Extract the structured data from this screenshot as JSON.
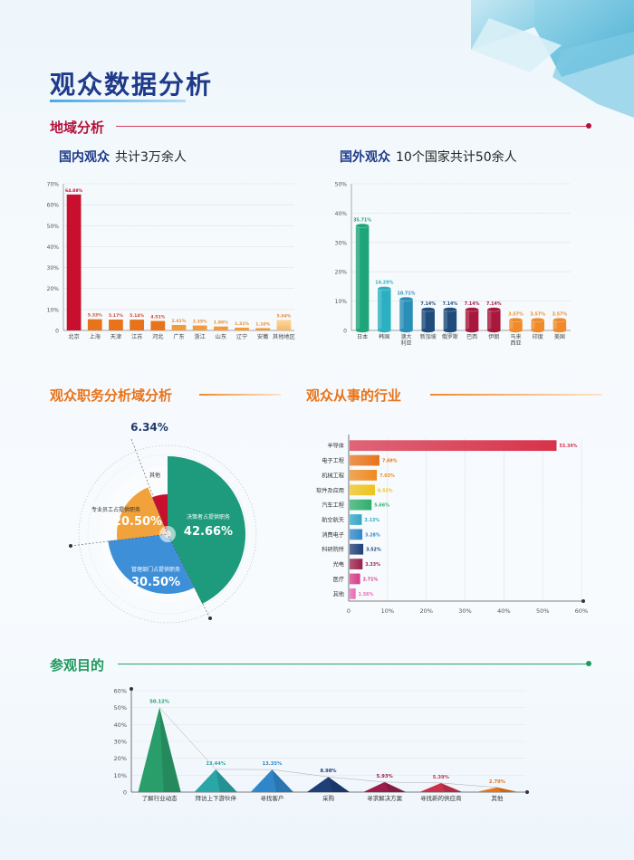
{
  "page": {
    "title": "观众数据分析"
  },
  "section_region": {
    "title": "地域分析"
  },
  "section_job": {
    "title": "观众职务分析域分析"
  },
  "section_industry": {
    "title": "观众从事的行业"
  },
  "section_purpose": {
    "title": "参观目的"
  },
  "domestic": {
    "title": "国内观众",
    "subtitle": "共计3万余人"
  },
  "foreign": {
    "title": "国外观众",
    "subtitle": "10个国家共计50余人"
  },
  "colors": {
    "navy": "#1f3a8a",
    "crimson": "#b5123a",
    "orange": "#e8731a",
    "green": "#1e9a5e"
  },
  "chart_data": [
    {
      "id": "domestic",
      "type": "bar",
      "title": "国内观众",
      "categories": [
        "北京",
        "上海",
        "天津",
        "江苏",
        "河北",
        "广东",
        "浙江",
        "山东",
        "辽宁",
        "安徽",
        "其他地区"
      ],
      "values": [
        64.88,
        5.33,
        5.17,
        5.14,
        4.51,
        2.61,
        2.35,
        1.88,
        1.31,
        1.1,
        5.04
      ],
      "labels": [
        "64.88%",
        "5.33%",
        "5.17%",
        "5.14%",
        "4.51%",
        "2.61%",
        "2.35%",
        "1.88%",
        "1.31%",
        "1.10%",
        "5.04%"
      ],
      "yticks": [
        "0",
        "10%",
        "20%",
        "30%",
        "40%",
        "50%",
        "60%",
        "70%"
      ],
      "ylim": [
        0,
        70
      ],
      "grid": true
    },
    {
      "id": "foreign",
      "type": "bar",
      "title": "国外观众",
      "categories": [
        "日本",
        "韩国",
        "澳大\n利亚",
        "新加坡",
        "俄罗斯",
        "巴西",
        "伊朗",
        "马来\n西亚",
        "印度",
        "美国"
      ],
      "values": [
        35.71,
        14.29,
        10.71,
        7.14,
        7.14,
        7.14,
        7.14,
        3.57,
        3.57,
        3.57
      ],
      "labels": [
        "35.71%",
        "14.29%",
        "10.71%",
        "7.14%",
        "7.14%",
        "7.14%",
        "7.14%",
        "3.57%",
        "3.57%",
        "3.57%"
      ],
      "yticks": [
        "0",
        "10%",
        "20%",
        "30%",
        "40%",
        "50%"
      ],
      "ylim": [
        0,
        50
      ],
      "grid": true
    },
    {
      "id": "job",
      "type": "pie",
      "slices": [
        {
          "label": "决策者占提供职务",
          "value": 42.66,
          "text": "42.66%",
          "color": "#1e9a7c"
        },
        {
          "label": "管理部门占提供职务",
          "value": 30.5,
          "text": "30.50%",
          "color": "#3d8fd8"
        },
        {
          "label": "专业员工占提供职务",
          "value": 20.5,
          "text": "20.50%",
          "color": "#f2a23a"
        },
        {
          "label": "其他",
          "value": 6.34,
          "text": "6.34%",
          "color": "#c8102e"
        }
      ]
    },
    {
      "id": "industry",
      "type": "bar",
      "orientation": "horizontal",
      "categories": [
        "半导体",
        "电子工程",
        "机械工程",
        "软件及应用",
        "汽车工程",
        "航空航天",
        "消费电子",
        "科研院所",
        "光电",
        "医疗",
        "其他"
      ],
      "values": [
        53.34,
        7.69,
        7.03,
        6.53,
        5.66,
        3.13,
        3.28,
        3.52,
        3.33,
        2.71,
        1.56
      ],
      "labels": [
        "53.34%",
        "7.69%",
        "7.03%",
        "6.53%",
        "5.66%",
        "3.13%",
        "3.28%",
        "3.52%",
        "3.33%",
        "2.71%",
        "1.56%"
      ],
      "colors": [
        "#d8324a",
        "#e8731a",
        "#ee8a1f",
        "#efc21c",
        "#2fae6a",
        "#31a6c4",
        "#2f86c8",
        "#1f3f78",
        "#9b1e4a",
        "#d63a8a",
        "#e86ab4"
      ],
      "xticks": [
        "0",
        "10%",
        "20%",
        "30%",
        "40%",
        "50%",
        "60%"
      ],
      "xlim": [
        0,
        60
      ],
      "grid": true
    },
    {
      "id": "purpose",
      "type": "bar",
      "categories": [
        "了解行业动态",
        "拜访上下游伙伴",
        "寻找客户",
        "采购",
        "寻求解决方案",
        "寻找新的供应商",
        "其他"
      ],
      "values": [
        50.12,
        13.44,
        13.35,
        8.98,
        5.93,
        5.39,
        2.79
      ],
      "labels": [
        "50.12%",
        "13.44%",
        "13.35%",
        "8.98%",
        "5.93%",
        "5.39%",
        "2.79%"
      ],
      "colors": [
        "#2a9e6a",
        "#2aa6a8",
        "#2f86c8",
        "#1f3f78",
        "#9b1e4a",
        "#c8324a",
        "#e8731a"
      ],
      "yticks": [
        "0",
        "10%",
        "20%",
        "30%",
        "40%",
        "50%",
        "60%"
      ],
      "ylim": [
        0,
        60
      ],
      "grid": true
    }
  ]
}
